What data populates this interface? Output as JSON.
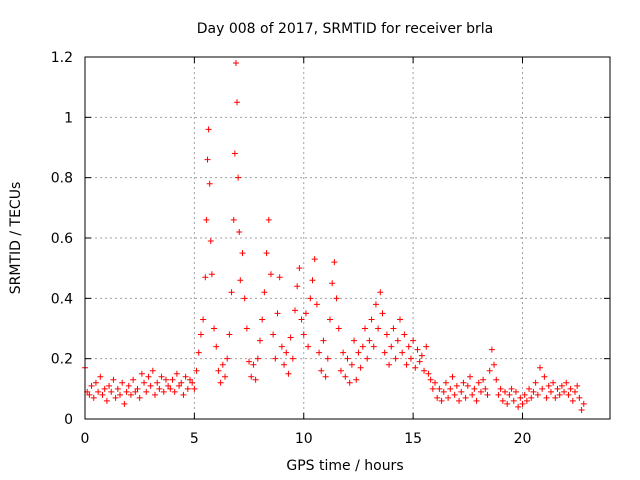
{
  "chart_data": {
    "type": "scatter",
    "title": "Day 008 of 2017, SRMTID for receiver brla",
    "xlabel": "GPS time / hours",
    "ylabel": "SRMTID / TECUs",
    "xlim": [
      0,
      24
    ],
    "ylim": [
      0,
      1.2
    ],
    "x_ticks": [
      0,
      5,
      10,
      15,
      20
    ],
    "x_tick_labels": [
      "0",
      "5",
      "10",
      "15",
      "20"
    ],
    "y_ticks": [
      0,
      0.2,
      0.4,
      0.6,
      0.8,
      1.0,
      1.2
    ],
    "y_tick_labels": [
      "0",
      "0.2",
      "0.4",
      "0.6",
      "0.8",
      "1",
      "1.2"
    ],
    "grid": true,
    "marker": "+",
    "series": [
      {
        "name": "SRMTID",
        "color": "#ff0000",
        "points": [
          [
            0.0,
            0.17
          ],
          [
            0.1,
            0.09
          ],
          [
            0.2,
            0.08
          ],
          [
            0.3,
            0.11
          ],
          [
            0.4,
            0.07
          ],
          [
            0.5,
            0.12
          ],
          [
            0.6,
            0.09
          ],
          [
            0.7,
            0.14
          ],
          [
            0.8,
            0.08
          ],
          [
            0.9,
            0.1
          ],
          [
            1.0,
            0.06
          ],
          [
            1.1,
            0.11
          ],
          [
            1.2,
            0.09
          ],
          [
            1.3,
            0.13
          ],
          [
            1.4,
            0.07
          ],
          [
            1.5,
            0.1
          ],
          [
            1.6,
            0.08
          ],
          [
            1.7,
            0.12
          ],
          [
            1.8,
            0.05
          ],
          [
            1.9,
            0.09
          ],
          [
            2.0,
            0.11
          ],
          [
            2.1,
            0.08
          ],
          [
            2.2,
            0.13
          ],
          [
            2.3,
            0.09
          ],
          [
            2.4,
            0.1
          ],
          [
            2.5,
            0.07
          ],
          [
            2.6,
            0.15
          ],
          [
            2.7,
            0.12
          ],
          [
            2.8,
            0.09
          ],
          [
            2.9,
            0.14
          ],
          [
            3.0,
            0.11
          ],
          [
            3.1,
            0.16
          ],
          [
            3.2,
            0.08
          ],
          [
            3.3,
            0.12
          ],
          [
            3.4,
            0.1
          ],
          [
            3.5,
            0.14
          ],
          [
            3.6,
            0.09
          ],
          [
            3.7,
            0.13
          ],
          [
            3.8,
            0.11
          ],
          [
            3.9,
            0.1
          ],
          [
            4.0,
            0.13
          ],
          [
            4.1,
            0.09
          ],
          [
            4.2,
            0.15
          ],
          [
            4.3,
            0.11
          ],
          [
            4.4,
            0.12
          ],
          [
            4.5,
            0.08
          ],
          [
            4.6,
            0.14
          ],
          [
            4.7,
            0.1
          ],
          [
            4.8,
            0.13
          ],
          [
            4.9,
            0.12
          ],
          [
            5.0,
            0.1
          ],
          [
            5.1,
            0.16
          ],
          [
            5.2,
            0.22
          ],
          [
            5.3,
            0.28
          ],
          [
            5.4,
            0.33
          ],
          [
            5.5,
            0.47
          ],
          [
            5.55,
            0.66
          ],
          [
            5.6,
            0.86
          ],
          [
            5.65,
            0.96
          ],
          [
            5.7,
            0.78
          ],
          [
            5.75,
            0.59
          ],
          [
            5.8,
            0.48
          ],
          [
            5.9,
            0.3
          ],
          [
            6.0,
            0.24
          ],
          [
            6.1,
            0.16
          ],
          [
            6.2,
            0.12
          ],
          [
            6.3,
            0.18
          ],
          [
            6.4,
            0.14
          ],
          [
            6.5,
            0.2
          ],
          [
            6.6,
            0.28
          ],
          [
            6.7,
            0.42
          ],
          [
            6.8,
            0.66
          ],
          [
            6.85,
            0.88
          ],
          [
            6.9,
            1.18
          ],
          [
            6.95,
            1.05
          ],
          [
            7.0,
            0.8
          ],
          [
            7.05,
            0.62
          ],
          [
            7.1,
            0.46
          ],
          [
            7.2,
            0.55
          ],
          [
            7.3,
            0.4
          ],
          [
            7.4,
            0.3
          ],
          [
            7.5,
            0.19
          ],
          [
            7.6,
            0.14
          ],
          [
            7.7,
            0.18
          ],
          [
            7.8,
            0.13
          ],
          [
            7.9,
            0.2
          ],
          [
            8.0,
            0.26
          ],
          [
            8.1,
            0.33
          ],
          [
            8.2,
            0.42
          ],
          [
            8.3,
            0.55
          ],
          [
            8.4,
            0.66
          ],
          [
            8.5,
            0.48
          ],
          [
            8.6,
            0.28
          ],
          [
            8.7,
            0.2
          ],
          [
            8.8,
            0.35
          ],
          [
            8.9,
            0.47
          ],
          [
            9.0,
            0.24
          ],
          [
            9.1,
            0.18
          ],
          [
            9.2,
            0.22
          ],
          [
            9.3,
            0.15
          ],
          [
            9.4,
            0.27
          ],
          [
            9.5,
            0.2
          ],
          [
            9.6,
            0.36
          ],
          [
            9.7,
            0.44
          ],
          [
            9.8,
            0.5
          ],
          [
            9.9,
            0.33
          ],
          [
            10.0,
            0.28
          ],
          [
            10.1,
            0.35
          ],
          [
            10.2,
            0.24
          ],
          [
            10.3,
            0.4
          ],
          [
            10.4,
            0.46
          ],
          [
            10.5,
            0.53
          ],
          [
            10.6,
            0.38
          ],
          [
            10.7,
            0.22
          ],
          [
            10.8,
            0.16
          ],
          [
            10.9,
            0.26
          ],
          [
            11.0,
            0.14
          ],
          [
            11.1,
            0.2
          ],
          [
            11.2,
            0.33
          ],
          [
            11.3,
            0.45
          ],
          [
            11.4,
            0.52
          ],
          [
            11.5,
            0.4
          ],
          [
            11.6,
            0.3
          ],
          [
            11.7,
            0.16
          ],
          [
            11.8,
            0.22
          ],
          [
            11.9,
            0.14
          ],
          [
            12.0,
            0.2
          ],
          [
            12.1,
            0.12
          ],
          [
            12.2,
            0.18
          ],
          [
            12.3,
            0.26
          ],
          [
            12.4,
            0.13
          ],
          [
            12.5,
            0.22
          ],
          [
            12.6,
            0.17
          ],
          [
            12.7,
            0.24
          ],
          [
            12.8,
            0.3
          ],
          [
            12.9,
            0.2
          ],
          [
            13.0,
            0.26
          ],
          [
            13.1,
            0.33
          ],
          [
            13.2,
            0.24
          ],
          [
            13.3,
            0.38
          ],
          [
            13.4,
            0.3
          ],
          [
            13.5,
            0.42
          ],
          [
            13.6,
            0.35
          ],
          [
            13.7,
            0.22
          ],
          [
            13.8,
            0.28
          ],
          [
            13.9,
            0.18
          ],
          [
            14.0,
            0.24
          ],
          [
            14.1,
            0.3
          ],
          [
            14.2,
            0.2
          ],
          [
            14.3,
            0.26
          ],
          [
            14.4,
            0.33
          ],
          [
            14.5,
            0.22
          ],
          [
            14.6,
            0.28
          ],
          [
            14.7,
            0.18
          ],
          [
            14.8,
            0.24
          ],
          [
            14.9,
            0.2
          ],
          [
            15.0,
            0.26
          ],
          [
            15.1,
            0.17
          ],
          [
            15.2,
            0.23
          ],
          [
            15.3,
            0.19
          ],
          [
            15.4,
            0.21
          ],
          [
            15.5,
            0.16
          ],
          [
            15.6,
            0.24
          ],
          [
            15.7,
            0.15
          ],
          [
            15.8,
            0.13
          ],
          [
            15.9,
            0.1
          ],
          [
            16.0,
            0.12
          ],
          [
            16.1,
            0.07
          ],
          [
            16.2,
            0.1
          ],
          [
            16.3,
            0.06
          ],
          [
            16.4,
            0.09
          ],
          [
            16.5,
            0.12
          ],
          [
            16.6,
            0.07
          ],
          [
            16.7,
            0.1
          ],
          [
            16.8,
            0.14
          ],
          [
            16.9,
            0.08
          ],
          [
            17.0,
            0.11
          ],
          [
            17.1,
            0.06
          ],
          [
            17.2,
            0.09
          ],
          [
            17.3,
            0.12
          ],
          [
            17.4,
            0.07
          ],
          [
            17.5,
            0.11
          ],
          [
            17.6,
            0.14
          ],
          [
            17.7,
            0.08
          ],
          [
            17.8,
            0.1
          ],
          [
            17.9,
            0.06
          ],
          [
            18.0,
            0.12
          ],
          [
            18.1,
            0.09
          ],
          [
            18.2,
            0.13
          ],
          [
            18.3,
            0.1
          ],
          [
            18.4,
            0.08
          ],
          [
            18.5,
            0.16
          ],
          [
            18.6,
            0.23
          ],
          [
            18.7,
            0.18
          ],
          [
            18.8,
            0.13
          ],
          [
            18.9,
            0.08
          ],
          [
            19.0,
            0.1
          ],
          [
            19.1,
            0.06
          ],
          [
            19.2,
            0.09
          ],
          [
            19.3,
            0.05
          ],
          [
            19.4,
            0.08
          ],
          [
            19.5,
            0.1
          ],
          [
            19.6,
            0.06
          ],
          [
            19.7,
            0.09
          ],
          [
            19.8,
            0.04
          ],
          [
            19.9,
            0.07
          ],
          [
            20.0,
            0.05
          ],
          [
            20.1,
            0.08
          ],
          [
            20.2,
            0.06
          ],
          [
            20.3,
            0.1
          ],
          [
            20.4,
            0.07
          ],
          [
            20.5,
            0.09
          ],
          [
            20.6,
            0.12
          ],
          [
            20.7,
            0.08
          ],
          [
            20.8,
            0.17
          ],
          [
            20.9,
            0.1
          ],
          [
            21.0,
            0.14
          ],
          [
            21.1,
            0.07
          ],
          [
            21.2,
            0.11
          ],
          [
            21.3,
            0.09
          ],
          [
            21.4,
            0.12
          ],
          [
            21.5,
            0.07
          ],
          [
            21.6,
            0.1
          ],
          [
            21.7,
            0.08
          ],
          [
            21.8,
            0.11
          ],
          [
            21.9,
            0.09
          ],
          [
            22.0,
            0.12
          ],
          [
            22.1,
            0.08
          ],
          [
            22.2,
            0.1
          ],
          [
            22.3,
            0.06
          ],
          [
            22.4,
            0.09
          ],
          [
            22.5,
            0.11
          ],
          [
            22.6,
            0.07
          ],
          [
            22.7,
            0.03
          ],
          [
            22.8,
            0.05
          ]
        ]
      }
    ]
  }
}
